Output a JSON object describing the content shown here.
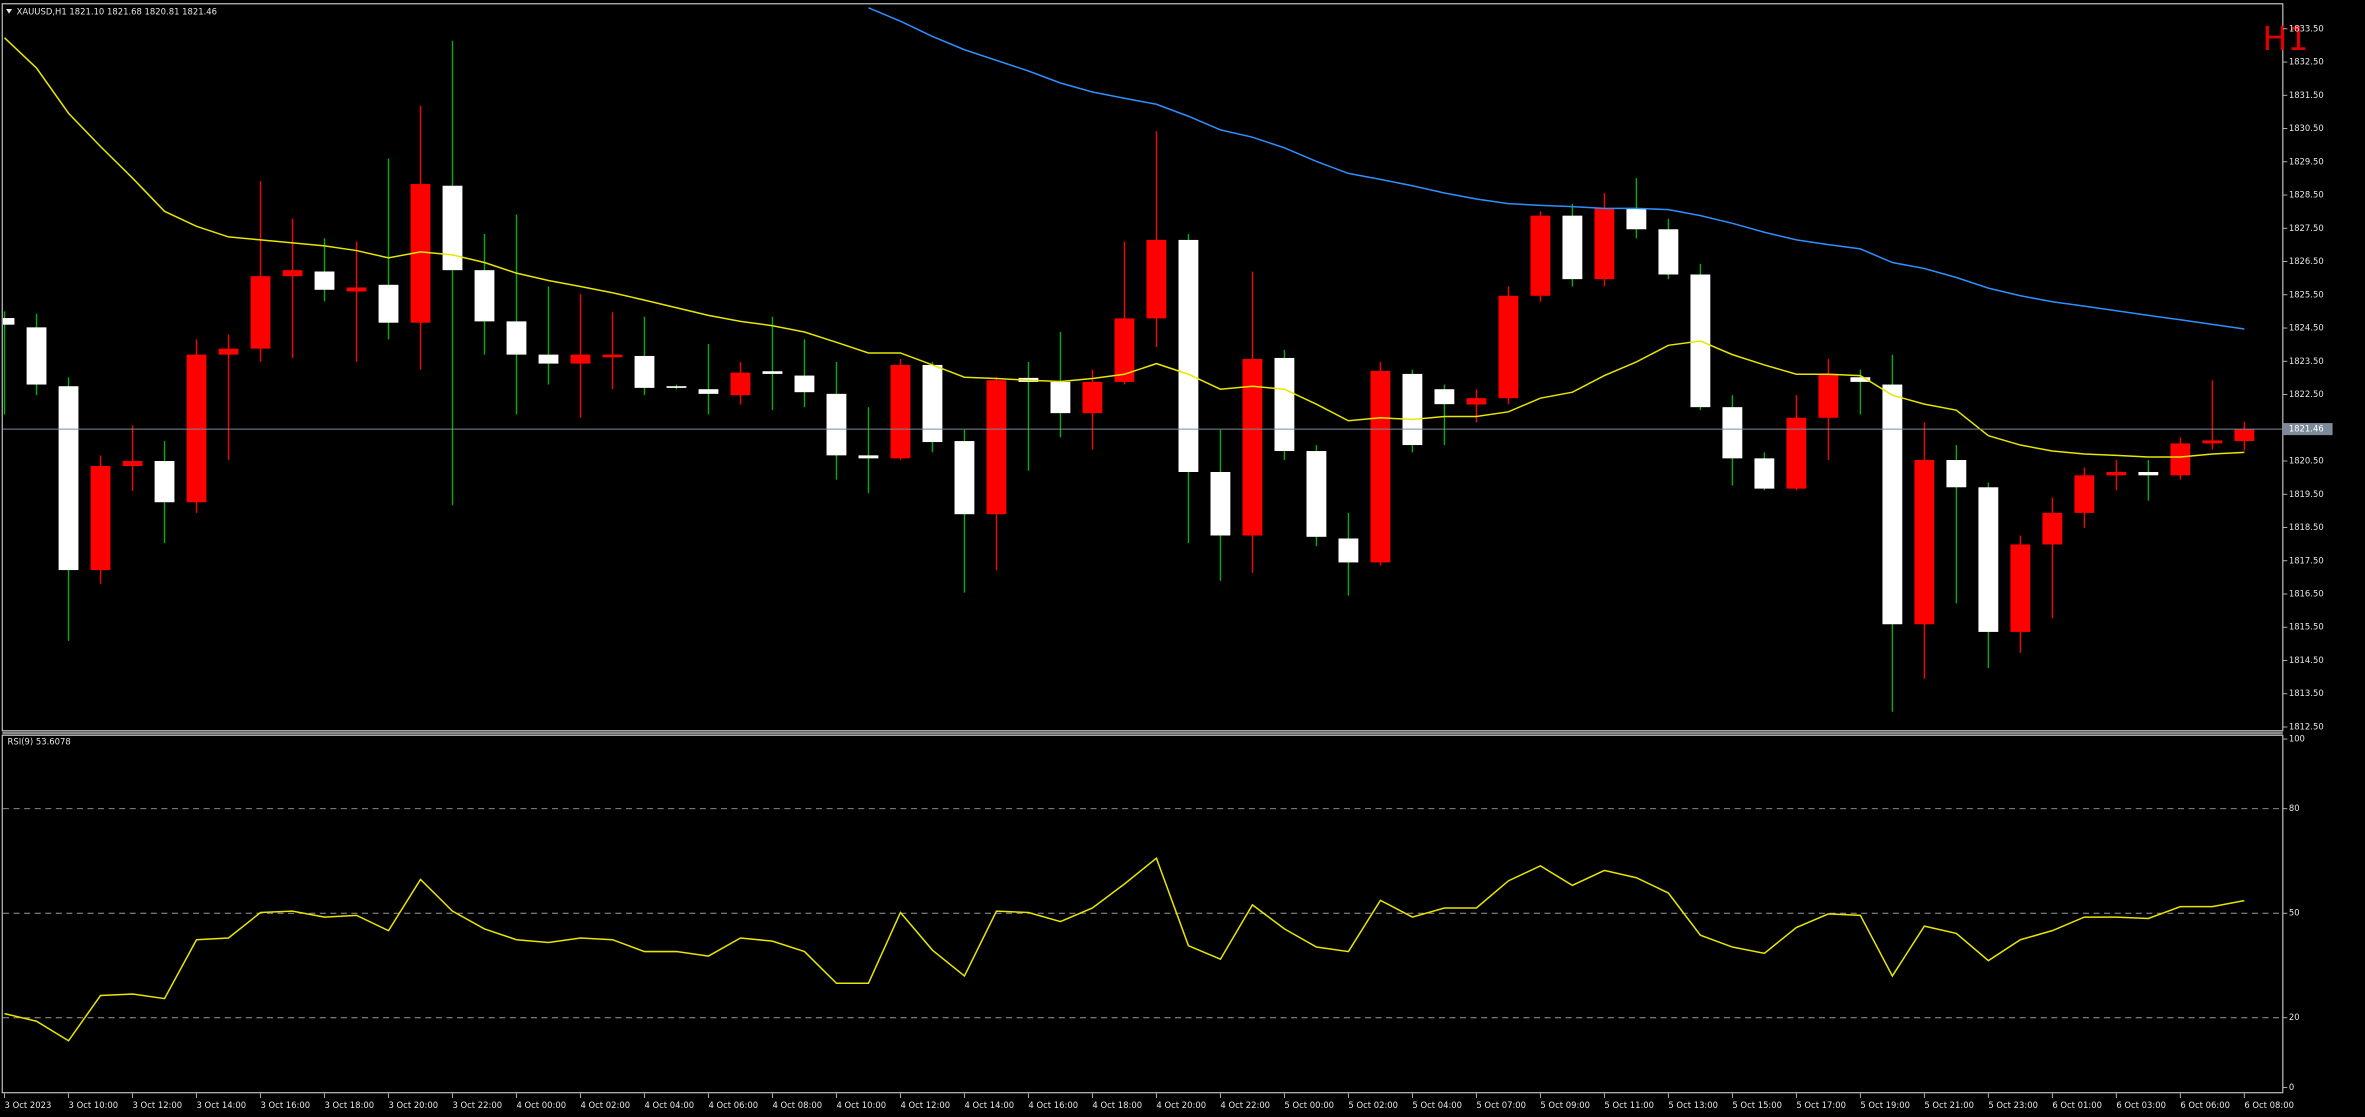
{
  "chart_data": [
    {
      "type": "candlestick",
      "header": "XAUUSD,H1  1821.10 1821.68 1820.81 1821.46",
      "timeframe_label": "H1",
      "categories": [
        "3 Oct 2023",
        null,
        "3 Oct 10:00",
        null,
        "3 Oct 12:00",
        null,
        "3 Oct 14:00",
        null,
        "3 Oct 16:00",
        null,
        "3 Oct 18:00",
        null,
        "3 Oct 20:00",
        null,
        "3 Oct 22:00",
        null,
        "4 Oct 00:00",
        null,
        "4 Oct 02:00",
        null,
        "4 Oct 04:00",
        null,
        "4 Oct 06:00",
        null,
        "4 Oct 08:00",
        null,
        "4 Oct 10:00",
        null,
        "4 Oct 12:00",
        null,
        "4 Oct 14:00",
        null,
        "4 Oct 16:00",
        null,
        "4 Oct 18:00",
        null,
        "4 Oct 20:00",
        null,
        "4 Oct 22:00",
        null,
        "5 Oct 00:00",
        null,
        "5 Oct 02:00",
        null,
        "5 Oct 04:00",
        null,
        "5 Oct 07:00",
        null,
        "5 Oct 09:00",
        null,
        "5 Oct 11:00",
        null,
        "5 Oct 13:00",
        null,
        "5 Oct 15:00",
        null,
        "5 Oct 17:00",
        null,
        "5 Oct 19:00",
        null,
        "5 Oct 21:00",
        null,
        "5 Oct 23:00",
        null,
        "6 Oct 01:00",
        null,
        "6 Oct 03:00",
        null,
        "6 Oct 06:00",
        null,
        "6 Oct 08:00"
      ],
      "open": [
        1824.8,
        1824.52,
        1822.75,
        1817.22,
        1820.35,
        1820.5,
        1819.26,
        1823.7,
        1823.88,
        1826.06,
        1826.2,
        1825.6,
        1825.8,
        1824.66,
        1828.78,
        1826.24,
        1824.7,
        1823.7,
        1823.43,
        1823.62,
        1823.66,
        1822.75,
        1822.66,
        1822.48,
        1823.2,
        1823.07,
        1822.52,
        1820.67,
        1820.58,
        1823.39,
        1821.1,
        1818.9,
        1823.0,
        1822.88,
        1821.94,
        1822.88,
        1824.79,
        1827.15,
        1820.17,
        1818.26,
        1823.6,
        1820.8,
        1818.17,
        1817.45,
        1823.12,
        1822.66,
        1822.2,
        1822.39,
        1825.47,
        1827.88,
        1825.97,
        1828.1,
        1827.47,
        1826.11,
        1822.12,
        1820.58,
        1819.67,
        1821.8,
        1823.02,
        1822.8,
        1815.59,
        1820.53,
        1819.71,
        1815.36,
        1817.99,
        1818.94,
        1820.07,
        1820.17,
        1820.07,
        1821.03,
        1821.1
      ],
      "high": [
        1825.0,
        1824.93,
        1823.02,
        1820.67,
        1821.57,
        1821.1,
        1824.16,
        1824.3,
        1828.92,
        1827.79,
        1827.2,
        1827.1,
        1829.6,
        1831.19,
        1833.14,
        1827.33,
        1827.92,
        1825.75,
        1825.52,
        1824.97,
        1824.84,
        1822.8,
        1824.02,
        1823.48,
        1824.84,
        1824.16,
        1823.48,
        1822.12,
        1823.57,
        1823.48,
        1821.44,
        1823.02,
        1823.48,
        1824.38,
        1823.25,
        1827.1,
        1830.42,
        1827.33,
        1821.44,
        1826.2,
        1823.84,
        1820.98,
        1818.94,
        1823.48,
        1823.25,
        1822.8,
        1822.66,
        1825.75,
        1828.01,
        1828.24,
        1828.56,
        1829.01,
        1827.79,
        1826.43,
        1822.48,
        1820.76,
        1822.48,
        1823.57,
        1823.25,
        1823.7,
        1821.66,
        1820.98,
        1819.85,
        1818.26,
        1819.4,
        1820.3,
        1820.53,
        1820.53,
        1821.21,
        1822.93,
        1821.68
      ],
      "low": [
        1821.9,
        1822.48,
        1815.09,
        1816.81,
        1819.6,
        1818.03,
        1818.94,
        1820.53,
        1823.48,
        1823.6,
        1825.3,
        1823.48,
        1824.16,
        1823.25,
        1819.17,
        1823.7,
        1821.9,
        1822.8,
        1821.8,
        1822.66,
        1822.48,
        1822.66,
        1821.9,
        1822.2,
        1822.03,
        1822.12,
        1819.94,
        1819.53,
        1820.53,
        1820.76,
        1816.54,
        1817.22,
        1820.21,
        1821.21,
        1820.85,
        1822.8,
        1823.93,
        1818.03,
        1816.9,
        1817.13,
        1820.53,
        1817.94,
        1816.45,
        1817.36,
        1820.76,
        1820.98,
        1821.66,
        1822.21,
        1825.29,
        1825.75,
        1825.75,
        1827.2,
        1825.97,
        1822.03,
        1819.76,
        1819.62,
        1819.62,
        1820.53,
        1821.9,
        1812.96,
        1813.95,
        1816.22,
        1814.27,
        1814.73,
        1815.77,
        1818.49,
        1819.62,
        1819.31,
        1819.94,
        1820.85,
        1820.81
      ],
      "close": [
        1824.6,
        1822.8,
        1817.22,
        1820.35,
        1820.5,
        1819.26,
        1823.7,
        1823.88,
        1826.06,
        1826.24,
        1825.65,
        1825.72,
        1824.66,
        1828.83,
        1826.24,
        1824.7,
        1823.7,
        1823.43,
        1823.7,
        1823.7,
        1822.7,
        1822.7,
        1822.52,
        1823.16,
        1823.12,
        1822.57,
        1820.67,
        1820.58,
        1823.39,
        1821.07,
        1818.9,
        1822.93,
        1822.88,
        1821.94,
        1822.88,
        1824.79,
        1827.15,
        1820.17,
        1818.26,
        1823.57,
        1820.8,
        1818.22,
        1817.45,
        1823.21,
        1820.98,
        1822.21,
        1822.39,
        1825.47,
        1827.88,
        1825.97,
        1828.1,
        1827.47,
        1826.11,
        1822.12,
        1820.58,
        1819.67,
        1821.8,
        1823.12,
        1822.88,
        1815.59,
        1820.53,
        1819.71,
        1815.36,
        1817.99,
        1818.94,
        1820.07,
        1820.17,
        1820.07,
        1821.03,
        1821.12,
        1821.46
      ],
      "up_color": "#ff0000",
      "down_color": "#ffffff",
      "up_wick_color": "#ff0000",
      "down_wick_color": "#00b400",
      "overlays": [
        {
          "color": "#e6e600",
          "values": [
            1833.23,
            1832.32,
            1830.96,
            1829.96,
            1829.01,
            1828.01,
            1827.56,
            1827.24,
            1827.15,
            1827.06,
            1826.97,
            1826.83,
            1826.61,
            1826.79,
            1826.7,
            1826.47,
            1826.15,
            1825.93,
            1825.75,
            1825.56,
            1825.34,
            1825.11,
            1824.88,
            1824.7,
            1824.57,
            1824.38,
            1824.07,
            1823.75,
            1823.75,
            1823.39,
            1823.02,
            1822.98,
            1822.93,
            1822.89,
            1822.98,
            1823.11,
            1823.43,
            1823.11,
            1822.66,
            1822.75,
            1822.66,
            1822.21,
            1821.71,
            1821.8,
            1821.75,
            1821.84,
            1821.84,
            1821.98,
            1822.39,
            1822.57,
            1823.07,
            1823.48,
            1823.98,
            1824.11,
            1823.7,
            1823.39,
            1823.11,
            1823.11,
            1823.07,
            1822.48,
            1822.21,
            1822.03,
            1821.26,
            1820.98,
            1820.8,
            1820.71,
            1820.67,
            1820.62,
            1820.62,
            1820.71,
            1820.76
          ]
        },
        {
          "color": "#2e8fff",
          "values": [
            null,
            null,
            null,
            null,
            null,
            null,
            null,
            null,
            null,
            null,
            null,
            null,
            null,
            null,
            null,
            null,
            null,
            null,
            null,
            null,
            null,
            null,
            null,
            null,
            null,
            null,
            null,
            1834.13,
            1833.73,
            1833.27,
            1832.87,
            1832.55,
            1832.23,
            1831.87,
            1831.6,
            1831.41,
            1831.23,
            1830.87,
            1830.46,
            1830.24,
            1829.92,
            1829.51,
            1829.15,
            1828.97,
            1828.78,
            1828.56,
            1828.38,
            1828.24,
            1828.19,
            1828.15,
            1828.1,
            1828.1,
            1828.06,
            1827.88,
            1827.65,
            1827.38,
            1827.15,
            1827.01,
            1826.88,
            1826.47,
            1826.29,
            1826.02,
            1825.7,
            1825.47,
            1825.29,
            1825.16,
            1825.02,
            1824.88,
            1824.75,
            1824.61,
            1824.47
          ]
        }
      ],
      "current_price": {
        "value": 1821.46,
        "label": "1821.46"
      },
      "ylim": [
        1812.41,
        1834.23
      ],
      "yticks": [
        {
          "value": 1833.5,
          "label": "1833.50"
        },
        {
          "value": 1832.5,
          "label": "1832.50"
        },
        {
          "value": 1831.5,
          "label": "1831.50"
        },
        {
          "value": 1830.5,
          "label": "1830.50"
        },
        {
          "value": 1829.5,
          "label": "1829.50"
        },
        {
          "value": 1828.5,
          "label": "1828.50"
        },
        {
          "value": 1827.5,
          "label": "1827.50"
        },
        {
          "value": 1826.5,
          "label": "1826.50"
        },
        {
          "value": 1825.5,
          "label": "1825.50"
        },
        {
          "value": 1824.5,
          "label": "1824.50"
        },
        {
          "value": 1823.5,
          "label": "1823.50"
        },
        {
          "value": 1822.5,
          "label": "1822.50"
        },
        {
          "value": 1820.5,
          "label": "1820.50"
        },
        {
          "value": 1819.5,
          "label": "1819.50"
        },
        {
          "value": 1818.5,
          "label": "1818.50"
        },
        {
          "value": 1817.5,
          "label": "1817.50"
        },
        {
          "value": 1816.5,
          "label": "1816.50"
        },
        {
          "value": 1815.5,
          "label": "1815.50"
        },
        {
          "value": 1814.5,
          "label": "1814.50"
        },
        {
          "value": 1813.5,
          "label": "1813.50"
        },
        {
          "value": 1812.5,
          "label": "1812.50"
        }
      ]
    },
    {
      "type": "line",
      "label": "RSI(9) 53.6078",
      "color": "#e6e600",
      "values": [
        21.2,
        19.0,
        13.4,
        26.4,
        26.8,
        25.5,
        42.4,
        42.9,
        50.2,
        50.6,
        48.9,
        49.4,
        45.0,
        59.7,
        50.6,
        45.5,
        42.4,
        41.6,
        42.9,
        42.4,
        39.0,
        39.0,
        37.7,
        42.9,
        42.0,
        39.0,
        29.9,
        29.9,
        50.2,
        39.4,
        32.0,
        50.6,
        50.2,
        47.6,
        51.5,
        58.4,
        65.8,
        40.7,
        36.8,
        52.4,
        45.5,
        40.3,
        39.0,
        53.7,
        48.9,
        51.5,
        51.5,
        59.3,
        63.6,
        58.0,
        62.3,
        60.2,
        55.8,
        43.7,
        40.3,
        38.5,
        45.9,
        49.8,
        49.4,
        32.0,
        46.3,
        44.2,
        36.4,
        42.4,
        45.0,
        48.9,
        48.9,
        48.5,
        51.9,
        51.9,
        53.6078
      ],
      "ylim": [
        0,
        100
      ],
      "yticks": [
        0,
        20,
        50,
        80,
        100
      ],
      "levels": [
        20,
        50,
        80
      ]
    }
  ]
}
